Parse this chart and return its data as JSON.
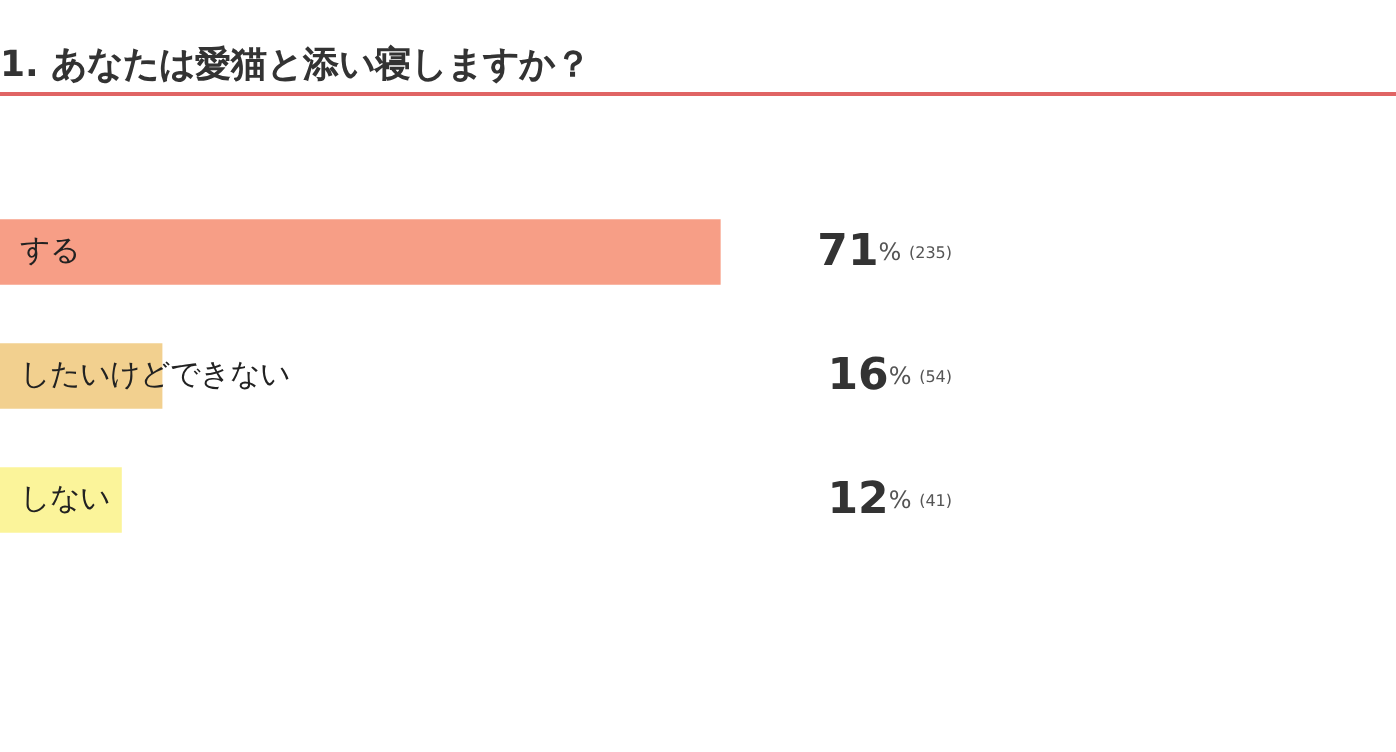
{
  "chart_data": {
    "type": "bar",
    "orientation": "horizontal",
    "title": "1. あなたは愛猫と添い寝しますか？",
    "categories": [
      "する",
      "したいけどできない",
      "しない"
    ],
    "values": [
      71,
      16,
      12
    ],
    "colors": [
      "#f79e86",
      "#f2d08f",
      "#fbf49a"
    ],
    "value_labels": [
      "71% (235)",
      "16% (54)",
      "12% (41)"
    ],
    "legend": false
  }
}
